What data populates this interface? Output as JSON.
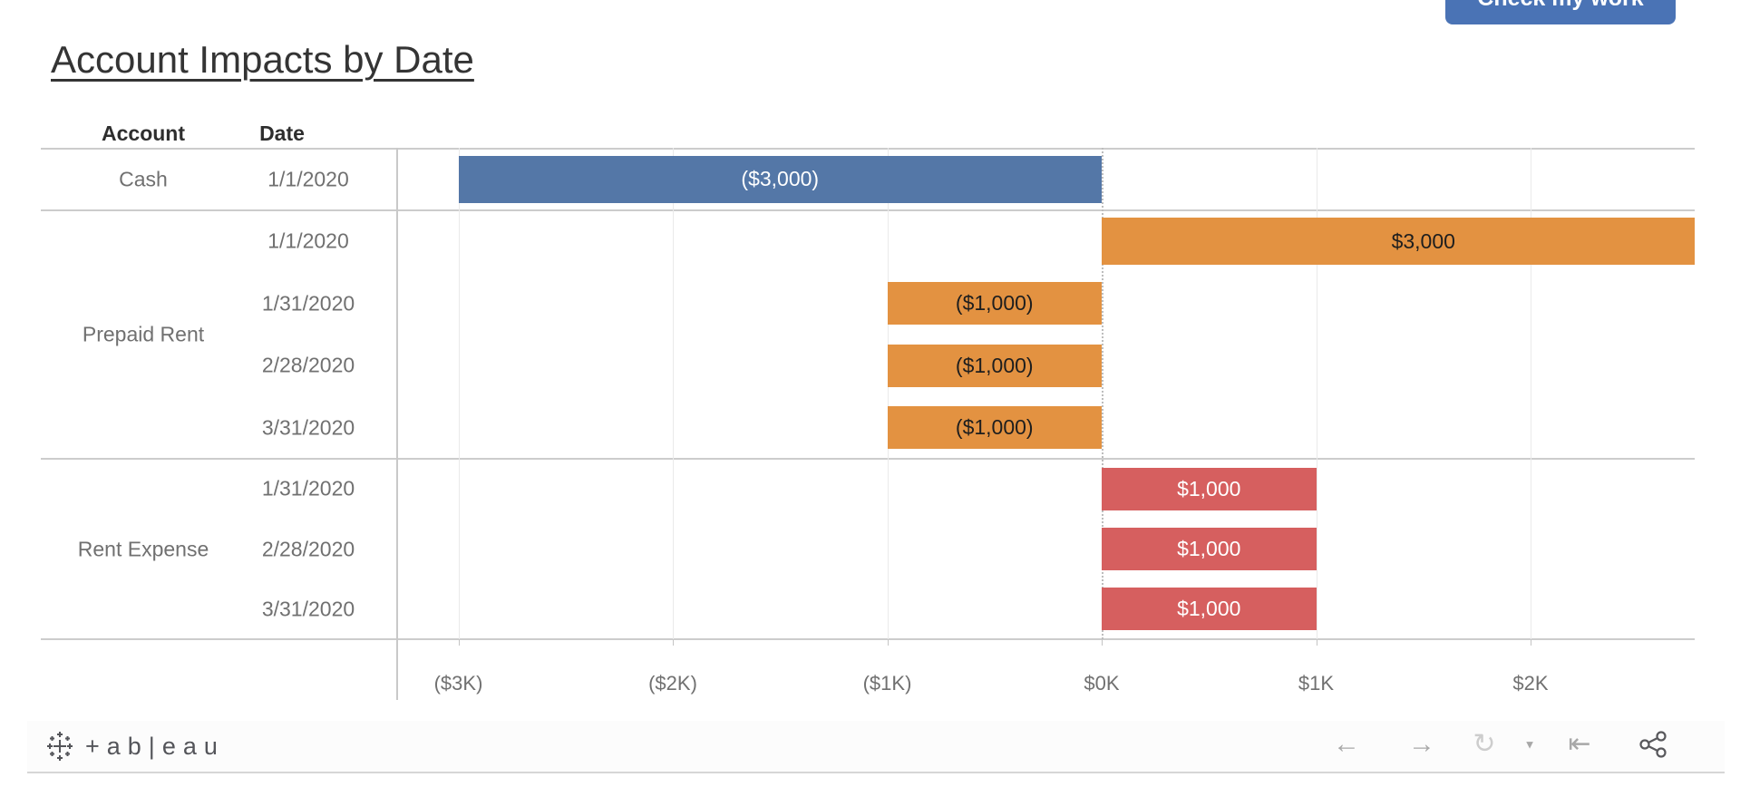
{
  "title": "Account Impacts by Date",
  "check_button": {
    "label": "Check my work",
    "color": "#4a73b5"
  },
  "columns": {
    "account": "Account",
    "date": "Date"
  },
  "chart_data": {
    "type": "bar",
    "orientation": "horizontal",
    "title": "Account Impacts by Date",
    "value_axis": {
      "ticks": [
        "($3K)",
        "($2K)",
        "($1K)",
        "$0K",
        "$1K",
        "$2K"
      ],
      "tick_values": [
        -3000,
        -2000,
        -1000,
        0,
        1000,
        2000
      ],
      "range": [
        -3290,
        2770
      ],
      "grid": true,
      "zero_line": "dotted"
    },
    "groups": [
      {
        "account": "Cash",
        "rows": [
          {
            "date": "1/1/2020",
            "value": -3000,
            "label": "($3,000)",
            "bar_color": "#5477a7",
            "label_color": "#ffffff",
            "bar_size": "large"
          }
        ]
      },
      {
        "account": "Prepaid Rent",
        "rows": [
          {
            "date": "1/1/2020",
            "value": 3000,
            "label": "$3,000",
            "bar_color": "#e39241",
            "label_color": "#1e1e1e",
            "bar_size": "large"
          },
          {
            "date": "1/31/2020",
            "value": -1000,
            "label": "($1,000)",
            "bar_color": "#e39241",
            "label_color": "#1e1e1e",
            "bar_size": "small"
          },
          {
            "date": "2/28/2020",
            "value": -1000,
            "label": "($1,000)",
            "bar_color": "#e39241",
            "label_color": "#1e1e1e",
            "bar_size": "small"
          },
          {
            "date": "3/31/2020",
            "value": -1000,
            "label": "($1,000)",
            "bar_color": "#e39241",
            "label_color": "#1e1e1e",
            "bar_size": "small"
          }
        ]
      },
      {
        "account": "Rent Expense",
        "rows": [
          {
            "date": "1/31/2020",
            "value": 1000,
            "label": "$1,000",
            "bar_color": "#d65f5f",
            "label_color": "#ffffff",
            "bar_size": "small"
          },
          {
            "date": "2/28/2020",
            "value": 1000,
            "label": "$1,000",
            "bar_color": "#d65f5f",
            "label_color": "#ffffff",
            "bar_size": "small"
          },
          {
            "date": "3/31/2020",
            "value": 1000,
            "label": "$1,000",
            "bar_color": "#d65f5f",
            "label_color": "#ffffff",
            "bar_size": "small"
          }
        ]
      }
    ]
  },
  "footer": {
    "wordmark": "+ab|eau",
    "icons": [
      {
        "name": "undo-arrow-icon",
        "glyph": "←"
      },
      {
        "name": "redo-arrow-icon",
        "glyph": "→"
      },
      {
        "name": "replay-icon",
        "glyph": "↻"
      },
      {
        "name": "dropdown-caret-icon",
        "glyph": "▼"
      },
      {
        "name": "reset-view-icon",
        "glyph": "⇤"
      }
    ]
  }
}
